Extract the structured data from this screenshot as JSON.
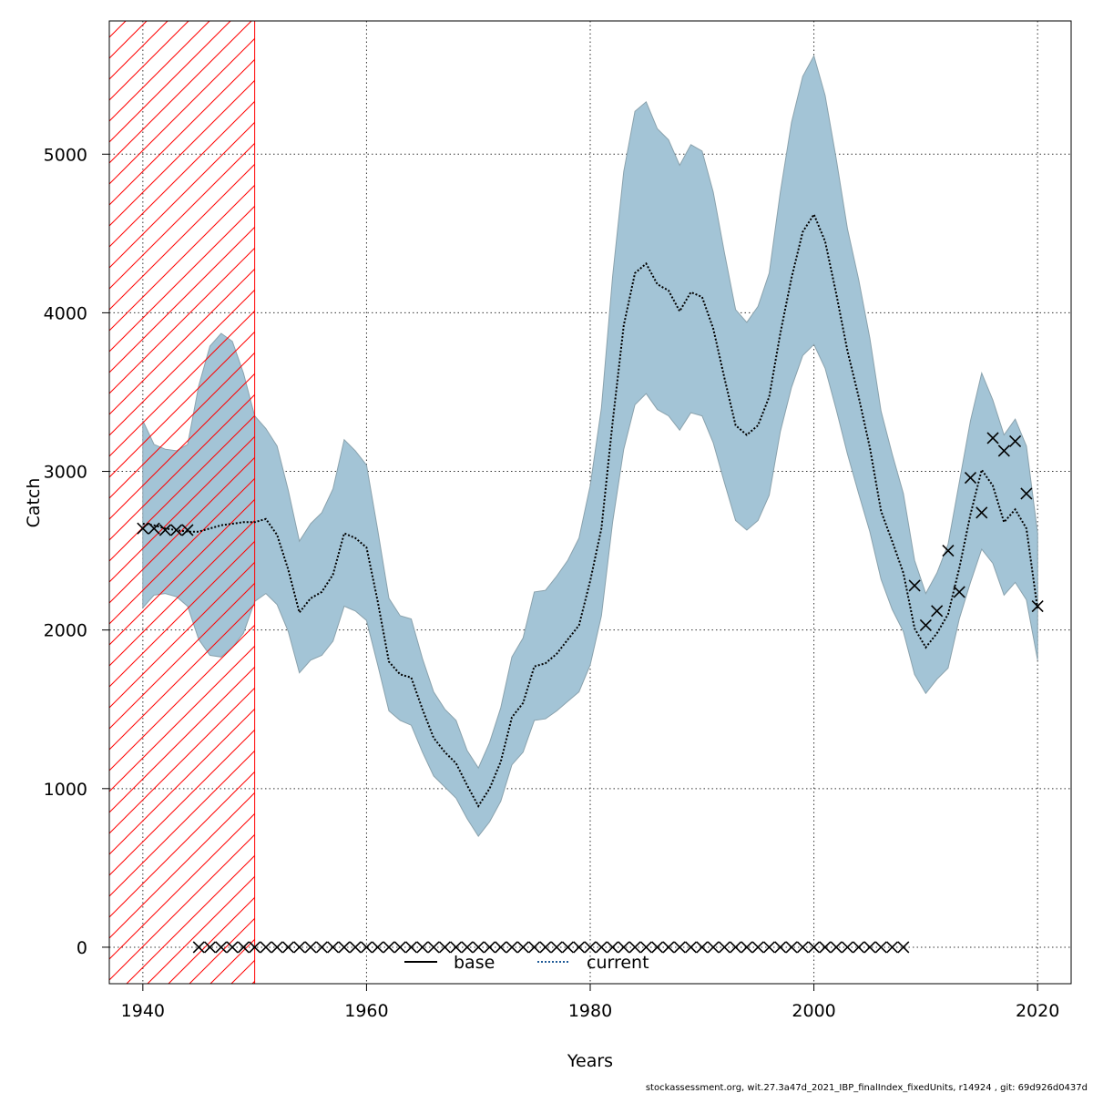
{
  "chart_data": {
    "type": "line",
    "xlabel": "Years",
    "ylabel": "Catch",
    "xlim": [
      1937,
      2023
    ],
    "ylim": [
      -230,
      5840
    ],
    "x_ticks": [
      1940,
      1960,
      1980,
      2000,
      2020
    ],
    "y_ticks": [
      0,
      1000,
      2000,
      3000,
      4000,
      5000
    ],
    "grid": true,
    "hatched_region": {
      "x_start": 1937,
      "x_end": 1950,
      "color": "#ff0000"
    },
    "confidence_band_color": "#a3c4d6",
    "legend": {
      "placement": "bottom-center",
      "entries": [
        {
          "label": "base",
          "style": "solid",
          "color": "#000000"
        },
        {
          "label": "current",
          "style": "dotted",
          "color": "#1f5a96"
        }
      ]
    },
    "series": [
      {
        "name": "current",
        "style": "dotted",
        "x": [
          1940,
          1941,
          1942,
          1943,
          1944,
          1945,
          1946,
          1947,
          1948,
          1949,
          1950,
          1951,
          1952,
          1953,
          1954,
          1955,
          1956,
          1957,
          1958,
          1959,
          1960,
          1961,
          1962,
          1963,
          1964,
          1965,
          1966,
          1967,
          1968,
          1969,
          1970,
          1971,
          1972,
          1973,
          1974,
          1975,
          1976,
          1977,
          1978,
          1979,
          1980,
          1981,
          1982,
          1983,
          1984,
          1985,
          1986,
          1987,
          1988,
          1989,
          1990,
          1991,
          1992,
          1993,
          1994,
          1995,
          1996,
          1997,
          1998,
          1999,
          2000,
          2001,
          2002,
          2003,
          2004,
          2005,
          2006,
          2007,
          2008,
          2009,
          2010,
          2011,
          2012,
          2013,
          2014,
          2015,
          2016,
          2017,
          2018,
          2019,
          2020
        ],
        "y": [
          2670,
          2660,
          2640,
          2630,
          2620,
          2620,
          2640,
          2660,
          2670,
          2680,
          2680,
          2700,
          2600,
          2380,
          2110,
          2200,
          2240,
          2350,
          2610,
          2580,
          2520,
          2180,
          1800,
          1720,
          1700,
          1500,
          1320,
          1230,
          1160,
          1020,
          890,
          1000,
          1170,
          1450,
          1540,
          1770,
          1790,
          1850,
          1940,
          2030,
          2310,
          2640,
          3310,
          3920,
          4250,
          4310,
          4180,
          4140,
          4010,
          4130,
          4100,
          3900,
          3590,
          3290,
          3230,
          3290,
          3470,
          3870,
          4220,
          4510,
          4620,
          4450,
          4120,
          3760,
          3470,
          3150,
          2750,
          2560,
          2360,
          2010,
          1890,
          1980,
          2100,
          2390,
          2730,
          3010,
          2910,
          2680,
          2760,
          2640,
          2130
        ]
      }
    ],
    "confidence_band": {
      "x": [
        1940,
        1941,
        1942,
        1943,
        1944,
        1945,
        1946,
        1947,
        1948,
        1949,
        1950,
        1951,
        1952,
        1953,
        1954,
        1955,
        1956,
        1957,
        1958,
        1959,
        1960,
        1961,
        1962,
        1963,
        1964,
        1965,
        1966,
        1967,
        1968,
        1969,
        1970,
        1971,
        1972,
        1973,
        1974,
        1975,
        1976,
        1977,
        1978,
        1979,
        1980,
        1981,
        1982,
        1983,
        1984,
        1985,
        1986,
        1987,
        1988,
        1989,
        1990,
        1991,
        1992,
        1993,
        1994,
        1995,
        1996,
        1997,
        1998,
        1999,
        2000,
        2001,
        2002,
        2003,
        2004,
        2005,
        2006,
        2007,
        2008,
        2009,
        2010,
        2011,
        2012,
        2013,
        2014,
        2015,
        2016,
        2017,
        2018,
        2019,
        2020
      ],
      "upper": [
        3320,
        3170,
        3140,
        3130,
        3170,
        3540,
        3790,
        3870,
        3820,
        3620,
        3350,
        3270,
        3160,
        2880,
        2560,
        2670,
        2740,
        2890,
        3200,
        3130,
        3040,
        2630,
        2200,
        2090,
        2070,
        1820,
        1610,
        1500,
        1430,
        1240,
        1130,
        1290,
        1510,
        1830,
        1950,
        2240,
        2250,
        2340,
        2440,
        2580,
        2910,
        3400,
        4230,
        4890,
        5270,
        5330,
        5160,
        5090,
        4930,
        5060,
        5020,
        4760,
        4380,
        4020,
        3940,
        4040,
        4250,
        4760,
        5200,
        5490,
        5620,
        5370,
        4970,
        4530,
        4210,
        3840,
        3380,
        3110,
        2860,
        2440,
        2230,
        2360,
        2540,
        2930,
        3320,
        3620,
        3450,
        3230,
        3330,
        3160,
        2610
      ],
      "lower": [
        2140,
        2220,
        2230,
        2210,
        2150,
        1940,
        1840,
        1830,
        1890,
        1980,
        2180,
        2230,
        2160,
        1990,
        1730,
        1810,
        1840,
        1930,
        2150,
        2120,
        2060,
        1780,
        1490,
        1430,
        1400,
        1230,
        1080,
        1010,
        940,
        810,
        700,
        790,
        920,
        1150,
        1230,
        1430,
        1440,
        1490,
        1550,
        1610,
        1780,
        2090,
        2680,
        3140,
        3420,
        3490,
        3390,
        3350,
        3260,
        3370,
        3350,
        3180,
        2930,
        2690,
        2630,
        2690,
        2850,
        3250,
        3530,
        3730,
        3800,
        3650,
        3390,
        3110,
        2860,
        2620,
        2320,
        2130,
        1990,
        1720,
        1600,
        1690,
        1760,
        2070,
        2300,
        2510,
        2420,
        2220,
        2300,
        2190,
        1810
      ]
    },
    "points_symbol": "×",
    "observed_points": {
      "x": [
        1940,
        1941,
        1942,
        1943,
        1944,
        1945,
        1946,
        1947,
        1948,
        1949,
        1950,
        1951,
        1952,
        1953,
        1954,
        1955,
        1956,
        1957,
        1958,
        1959,
        1960,
        1961,
        1962,
        1963,
        1964,
        1965,
        1966,
        1967,
        1968,
        1969,
        1970,
        1971,
        1972,
        1973,
        1974,
        1975,
        1976,
        1977,
        1978,
        1979,
        1980,
        1981,
        1982,
        1983,
        1984,
        1985,
        1986,
        1987,
        1988,
        1989,
        1990,
        1991,
        1992,
        1993,
        1994,
        1995,
        1996,
        1997,
        1998,
        1999,
        2000,
        2001,
        2002,
        2003,
        2004,
        2005,
        2006,
        2007,
        2008,
        2009,
        2010,
        2011,
        2012,
        2013,
        2014,
        2015,
        2016,
        2017,
        2018,
        2019,
        2020
      ],
      "y": [
        2640,
        2640,
        2630,
        2630,
        2630,
        0,
        0,
        0,
        0,
        0,
        0,
        0,
        0,
        0,
        0,
        0,
        0,
        0,
        0,
        0,
        0,
        0,
        0,
        0,
        0,
        0,
        0,
        0,
        0,
        0,
        0,
        0,
        0,
        0,
        0,
        0,
        0,
        0,
        0,
        0,
        0,
        0,
        0,
        0,
        0,
        0,
        0,
        0,
        0,
        0,
        0,
        0,
        0,
        0,
        0,
        0,
        0,
        0,
        0,
        0,
        0,
        0,
        0,
        0,
        0,
        0,
        0,
        0,
        0,
        2280,
        2030,
        2120,
        2500,
        2240,
        2960,
        2740,
        3210,
        3130,
        3190,
        2860,
        2150
      ]
    }
  },
  "footer_text": "stockassessment.org, wit.27.3a47d_2021_IBP_finalIndex_fixedUnits, r14924 , git: 69d926d0437d"
}
